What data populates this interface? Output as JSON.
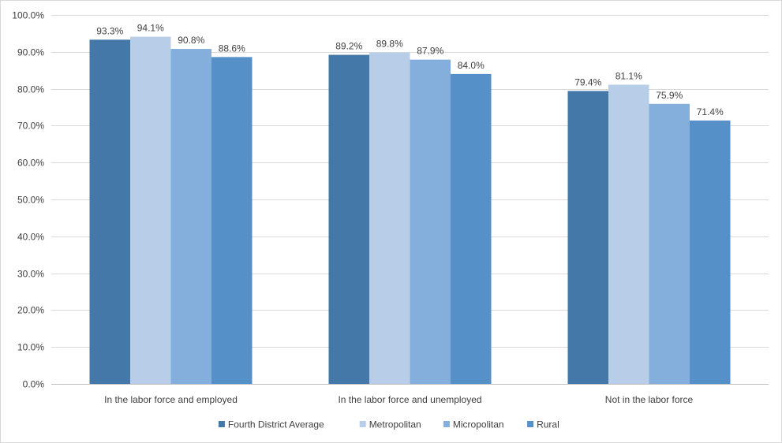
{
  "chart_data": {
    "type": "bar",
    "title": "",
    "xlabel": "",
    "ylabel": "",
    "ylim": [
      0,
      100
    ],
    "y_ticks": [
      0,
      10,
      20,
      30,
      40,
      50,
      60,
      70,
      80,
      90,
      100
    ],
    "y_tick_labels": [
      "0.0%",
      "10.0%",
      "20.0%",
      "30.0%",
      "40.0%",
      "50.0%",
      "60.0%",
      "70.0%",
      "80.0%",
      "90.0%",
      "100.0%"
    ],
    "grid": true,
    "legend_position": "bottom",
    "categories": [
      "In the labor force and employed",
      "In the labor force and unemployed",
      "Not in the labor force"
    ],
    "series": [
      {
        "name": "Fourth District Average",
        "color": "#4478a8",
        "values": [
          93.3,
          89.2,
          79.4
        ],
        "labels": [
          "93.3%",
          "89.2%",
          "79.4%"
        ]
      },
      {
        "name": "Metropolitan",
        "color": "#b8cde8",
        "values": [
          94.1,
          89.8,
          81.1
        ],
        "labels": [
          "94.1%",
          "89.8%",
          "81.1%"
        ]
      },
      {
        "name": "Micropolitan",
        "color": "#84aedb",
        "values": [
          90.8,
          87.9,
          75.9
        ],
        "labels": [
          "90.8%",
          "87.9%",
          "75.9%"
        ]
      },
      {
        "name": "Rural",
        "color": "#5690c8",
        "values": [
          88.6,
          84.0,
          71.4
        ],
        "labels": [
          "88.6%",
          "84.0%",
          "71.4%"
        ]
      }
    ]
  }
}
